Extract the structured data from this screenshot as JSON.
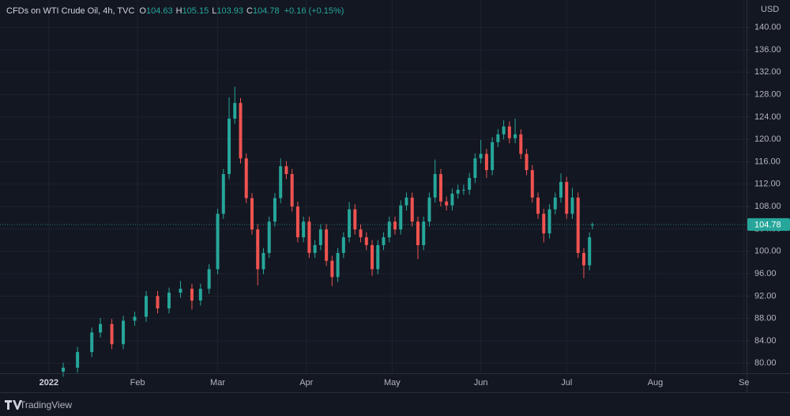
{
  "chart_data": {
    "type": "candlestick",
    "title": "CFDs on WTI Crude Oil, 4h, TVC",
    "ohlc_labels": [
      "O",
      "H",
      "L",
      "C"
    ],
    "change_label": "+0.16 (+0.15%)",
    "currency": "USD",
    "footer": "TradingView",
    "up_color": "#26a69a",
    "down_color": "#ef5350",
    "grid": true,
    "x": [
      5,
      10,
      15,
      18,
      22,
      26,
      30,
      34,
      38,
      42,
      46,
      50,
      53,
      56,
      59,
      61,
      63,
      65,
      67,
      69,
      71,
      73,
      75,
      77,
      79,
      81,
      83,
      85,
      87,
      89,
      91,
      93,
      95,
      97,
      99,
      101,
      103,
      105,
      107,
      109,
      111,
      113,
      115,
      117,
      119,
      121,
      123,
      125,
      127,
      129,
      131,
      133,
      135,
      137,
      139,
      141,
      143,
      145,
      147,
      149,
      151,
      153,
      155,
      157,
      159,
      161,
      163,
      165,
      167,
      169,
      171,
      173,
      175,
      177,
      179,
      181,
      183,
      185,
      187,
      189,
      190
    ],
    "open": [
      78.5,
      79.2,
      82,
      85.5,
      87,
      83.4,
      87.6,
      88.3,
      92,
      89.8,
      92.6,
      93.3,
      91.2,
      93.3,
      96.8,
      106.7,
      113.8,
      123.7,
      126.5,
      116.6,
      109.5,
      103.9,
      96.8,
      99.7,
      105.3,
      109.5,
      115.2,
      113.8,
      108,
      102.5,
      105.3,
      99.7,
      101.1,
      103.9,
      98.3,
      95.4,
      99.7,
      102.5,
      107.5,
      103.9,
      102.5,
      101.1,
      96.8,
      101.1,
      102.5,
      105.3,
      103.9,
      108.2,
      109.6,
      105.3,
      101.1,
      105.3,
      109.6,
      113.8,
      108.9,
      108.2,
      110.3,
      111,
      111,
      113.1,
      116.6,
      117.4,
      114.5,
      119.5,
      120.9,
      122.3,
      120.2,
      120.9,
      117.4,
      114.5,
      109.6,
      106.7,
      103.2,
      107.5,
      109.6,
      112.4,
      106.7,
      109.6,
      99.7,
      97.5,
      104.63
    ],
    "high": [
      80.1,
      82.9,
      86.4,
      88.1,
      87.9,
      88.5,
      89.2,
      92.9,
      92.9,
      93.5,
      94.7,
      94.2,
      94.2,
      97.7,
      107.6,
      114.7,
      127.5,
      129.4,
      127.4,
      117.5,
      110.4,
      104.8,
      100.6,
      106.2,
      110.4,
      116.6,
      116.1,
      114.7,
      108.9,
      106.2,
      106.2,
      102,
      104.8,
      104.8,
      99.2,
      100.6,
      103.4,
      108.8,
      108.4,
      104.8,
      103.4,
      102,
      102,
      103.4,
      106.2,
      106.2,
      109.1,
      110.5,
      110.5,
      106.2,
      106.2,
      110.5,
      116.4,
      114.7,
      109.8,
      111.2,
      111.9,
      111.9,
      114,
      117.5,
      119.9,
      118.3,
      120.4,
      121.8,
      123.4,
      123.2,
      123.7,
      121.8,
      118.3,
      115.4,
      110.5,
      107.6,
      108.4,
      110.5,
      113.9,
      113.3,
      111.3,
      110.5,
      100.6,
      103.4,
      105.15
    ],
    "low": [
      77.6,
      78.3,
      81.1,
      84.6,
      82.5,
      82.5,
      86.7,
      87.4,
      88.9,
      88.9,
      91.7,
      89.6,
      90.3,
      92.4,
      95.9,
      105.8,
      112.9,
      122.8,
      115.7,
      108.6,
      103,
      93.9,
      95.9,
      98.8,
      104.4,
      108.6,
      112.9,
      107.1,
      101.6,
      101.6,
      98.8,
      98.8,
      100.2,
      97.4,
      93.8,
      94.5,
      98.8,
      101.6,
      103,
      101.6,
      100.2,
      95.6,
      95.9,
      100.2,
      101.6,
      103,
      103,
      107.3,
      104.4,
      98.6,
      100.2,
      104.4,
      108.7,
      108,
      107.3,
      107.3,
      109.4,
      110.1,
      110.1,
      112.2,
      115.7,
      113.1,
      113.6,
      118.6,
      120,
      119.3,
      119.3,
      116.5,
      113.6,
      108.7,
      105.8,
      101.6,
      102.3,
      106.6,
      108.7,
      105.8,
      105.8,
      98.8,
      95.2,
      96.6,
      103.93
    ],
    "close": [
      79.2,
      82,
      85.5,
      87,
      83.4,
      87.6,
      88.3,
      92,
      89.8,
      92.6,
      93.3,
      91.2,
      93.3,
      96.8,
      106.7,
      113.8,
      123.7,
      126.5,
      116.6,
      109.5,
      103.9,
      96.8,
      99.7,
      105.3,
      109.5,
      115.2,
      113.8,
      108,
      102.5,
      105.3,
      99.7,
      101.1,
      103.9,
      98.3,
      95.4,
      99.7,
      102.5,
      107.5,
      103.9,
      102.5,
      101.1,
      96.8,
      101.1,
      102.5,
      105.3,
      103.9,
      108.2,
      109.6,
      105.3,
      101.1,
      105.3,
      109.6,
      113.8,
      108.9,
      108.2,
      110.3,
      111,
      111,
      113.1,
      116.6,
      117.4,
      114.5,
      119.5,
      120.9,
      122.3,
      120.2,
      120.9,
      117.4,
      114.5,
      109.6,
      106.7,
      103.2,
      107.5,
      109.6,
      112.4,
      106.7,
      109.6,
      99.7,
      97.5,
      102.5,
      104.78
    ],
    "xlim": [
      -17.1,
      243.9
    ],
    "xticks": [
      {
        "value": 0,
        "label": "2022"
      },
      {
        "value": 31,
        "label": "Feb"
      },
      {
        "value": 59,
        "label": "Mar"
      },
      {
        "value": 90,
        "label": "Apr"
      },
      {
        "value": 120,
        "label": "May"
      },
      {
        "value": 151,
        "label": "Jun"
      },
      {
        "value": 181,
        "label": "Jul"
      },
      {
        "value": 212,
        "label": "Aug"
      },
      {
        "value": 243,
        "label": "Se"
      }
    ],
    "ylim": [
      78.2,
      144.9
    ],
    "yticks": [
      {
        "value": 80,
        "label": "80.00"
      },
      {
        "value": 84,
        "label": "84.00"
      },
      {
        "value": 88,
        "label": "88.00"
      },
      {
        "value": 92,
        "label": "92.00"
      },
      {
        "value": 96,
        "label": "96.00"
      },
      {
        "value": 100,
        "label": "100.00"
      },
      {
        "value": 104,
        "label": "104.00"
      },
      {
        "value": 108,
        "label": "108.00"
      },
      {
        "value": 112,
        "label": "112.00"
      },
      {
        "value": 116,
        "label": "116.00"
      },
      {
        "value": 120,
        "label": "120.00"
      },
      {
        "value": 124,
        "label": "124.00"
      },
      {
        "value": 128,
        "label": "128.00"
      },
      {
        "value": 132,
        "label": "132.00"
      },
      {
        "value": 136,
        "label": "136.00"
      },
      {
        "value": 140,
        "label": "140.00"
      }
    ]
  }
}
